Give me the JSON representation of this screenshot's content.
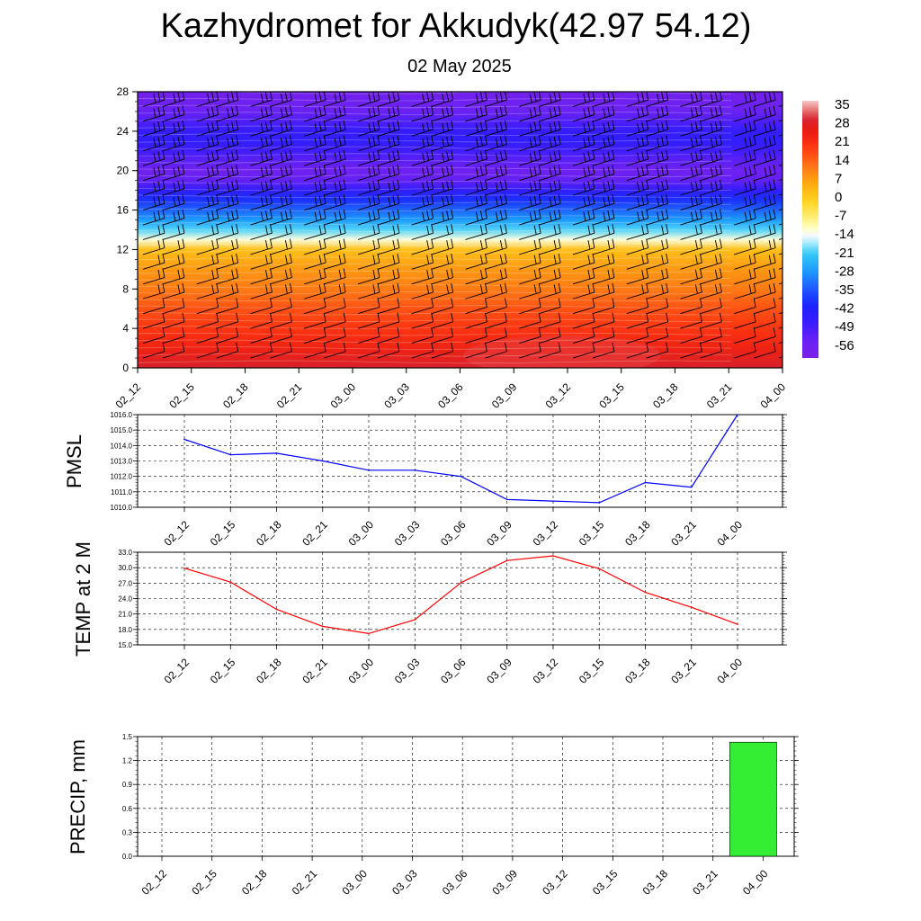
{
  "title": "Kazhydromet for Akkudyk(42.97 54.12)",
  "subtitle": "02 May 2025",
  "colors": {
    "pmsl_line": "#0000ff",
    "temp_line": "#ff0000",
    "precip_bar": "#33ee33",
    "grid": "#000000"
  },
  "chart_data": [
    {
      "type": "heatmap",
      "title": "",
      "ylabel": "",
      "x_ticks": [
        "02_12",
        "02_15",
        "02_18",
        "02_21",
        "03_00",
        "03_03",
        "03_06",
        "03_09",
        "03_12",
        "03_15",
        "03_18",
        "03_21",
        "04_00"
      ],
      "y_ticks": [
        "0",
        "4",
        "8",
        "12",
        "16",
        "20",
        "24",
        "28"
      ],
      "ylim": [
        0,
        28
      ],
      "colorbar_labels": [
        "35",
        "28",
        "21",
        "14",
        "7",
        "0",
        "-7",
        "-14",
        "-21",
        "-28",
        "-35",
        "-42",
        "-49",
        "-56"
      ],
      "colorbar_range": [
        -63,
        40
      ],
      "overlay": "wind-barbs",
      "profile": {
        "levels": [
          0,
          2,
          4,
          6,
          8,
          10,
          12,
          13,
          14,
          15,
          16,
          17,
          18,
          19,
          20,
          21,
          22,
          23,
          24,
          25,
          26,
          28
        ],
        "values": [
          32,
          26,
          22,
          18,
          13,
          9,
          3,
          -12,
          -20,
          -28,
          -34,
          -40,
          -47,
          -55,
          -58,
          -54,
          -50,
          -47,
          -48,
          -52,
          -56,
          -60
        ]
      }
    },
    {
      "type": "line",
      "ylabel": "PMSL",
      "categories": [
        "02_12",
        "02_15",
        "02_18",
        "02_21",
        "03_00",
        "03_03",
        "03_06",
        "03_09",
        "03_12",
        "03_15",
        "03_18",
        "03_21",
        "04_00"
      ],
      "values": [
        1014.4,
        1013.4,
        1013.5,
        1013.0,
        1012.4,
        1012.4,
        1012.0,
        1010.5,
        1010.4,
        1010.3,
        1011.6,
        1011.3,
        1016.0
      ],
      "ylim": [
        1010.0,
        1016.0
      ],
      "y_ticks": [
        "1010.0",
        "1011.0",
        "1012.0",
        "1013.0",
        "1014.0",
        "1015.0",
        "1016.0"
      ],
      "grid": true
    },
    {
      "type": "line",
      "ylabel": "TEMP at 2 M",
      "categories": [
        "02_12",
        "02_15",
        "02_18",
        "02_21",
        "03_00",
        "03_03",
        "03_06",
        "03_09",
        "03_12",
        "03_15",
        "03_18",
        "03_21",
        "04_00"
      ],
      "values": [
        29.9,
        27.2,
        21.9,
        18.6,
        17.2,
        19.9,
        27.1,
        31.4,
        32.3,
        29.8,
        25.2,
        22.3,
        19.0
      ],
      "ylim": [
        15.0,
        33.0
      ],
      "y_ticks": [
        "15.0",
        "18.0",
        "21.0",
        "24.0",
        "27.0",
        "30.0",
        "33.0"
      ],
      "grid": true
    },
    {
      "type": "bar",
      "ylabel": "PRECIP, mm",
      "categories": [
        "02_12",
        "02_15",
        "02_18",
        "02_21",
        "03_00",
        "03_03",
        "03_06",
        "03_09",
        "03_12",
        "03_15",
        "03_18",
        "03_21",
        "04_00"
      ],
      "values": [
        0,
        0,
        0,
        0,
        0,
        0,
        0,
        0,
        0,
        0,
        0,
        0,
        1.43
      ],
      "ylim": [
        0.0,
        1.5
      ],
      "y_ticks": [
        "0.0",
        "0.3",
        "0.6",
        "0.9",
        "1.2",
        "1.5"
      ],
      "grid": true
    }
  ]
}
